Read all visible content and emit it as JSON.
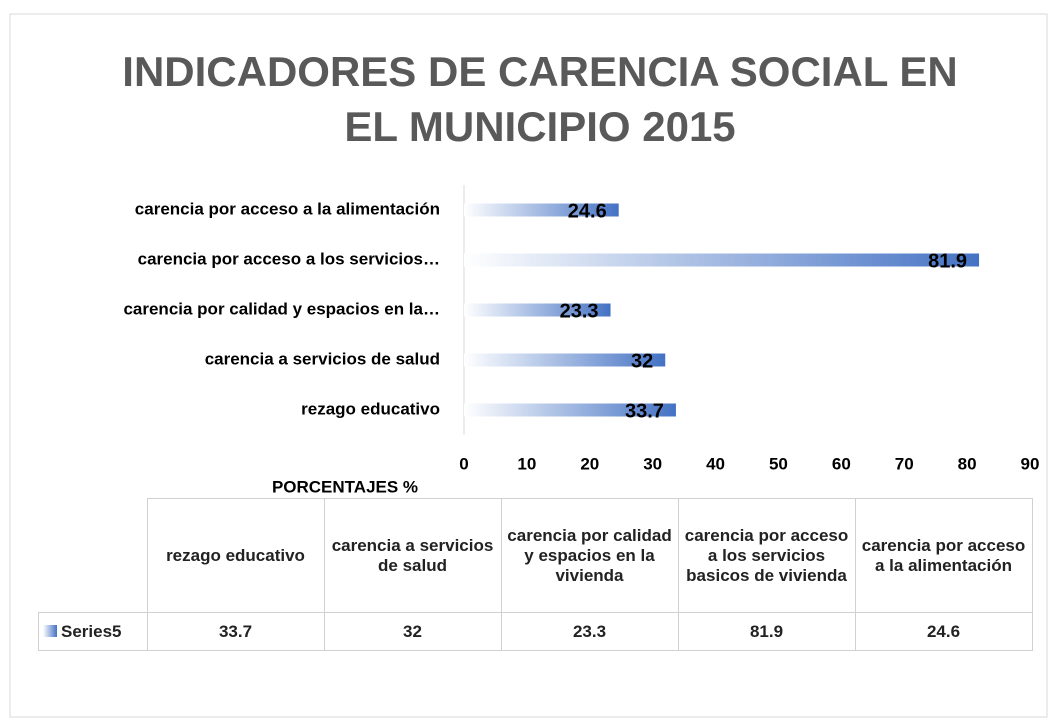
{
  "chart_data": {
    "type": "bar",
    "orientation": "horizontal",
    "title": "INDICADORES DE CARENCIA SOCIAL EN EL MUNICIPIO 2015",
    "x_label": "PORCENTAJES %",
    "categories": [
      "rezago educativo",
      "carencia a servicios de salud",
      "carencia por calidad y espacios en la vivienda",
      "carencia por acceso a los servicios basicos de vivienda",
      "carencia por acceso a la alimentación"
    ],
    "category_labels": [
      "rezago educativo",
      "carencia a servicios de salud",
      "carencia por calidad y espacios en la…",
      "carencia por acceso a los servicios…",
      "carencia por acceso a la alimentación"
    ],
    "series": [
      {
        "name": "Series5",
        "color": "#4472c4",
        "values": [
          33.7,
          32,
          23.3,
          81.9,
          24.6
        ]
      }
    ],
    "xlim": [
      0,
      90
    ],
    "xticks": [
      0,
      10,
      20,
      30,
      40,
      50,
      60,
      70,
      80,
      90
    ],
    "grid": false,
    "data_table": true
  }
}
